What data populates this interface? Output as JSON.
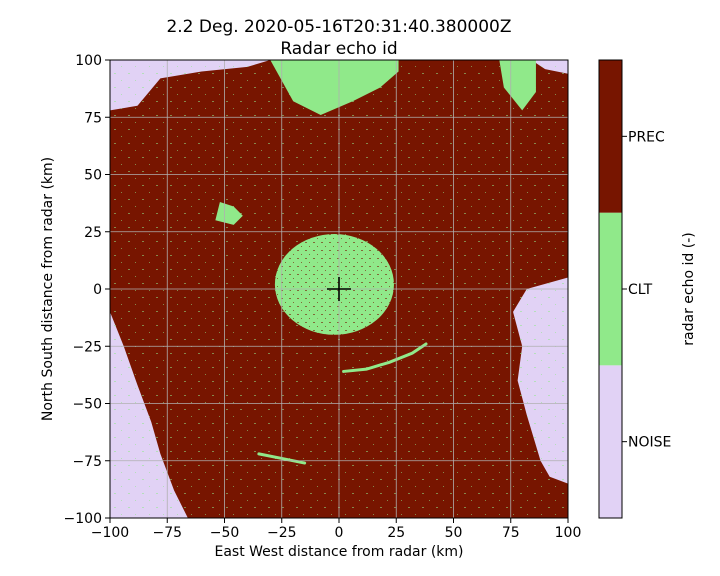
{
  "chart_data": {
    "type": "heatmap",
    "title": "2.2 Deg. 2020-05-16T20:31:40.380000Z",
    "subtitle": "Radar echo id",
    "xlabel": "East West distance from radar (km)",
    "ylabel": "North South distance from radar (km)",
    "xlim": [
      -100,
      100
    ],
    "ylim": [
      -100,
      100
    ],
    "x_ticks": [
      -100,
      -75,
      -50,
      -25,
      0,
      25,
      50,
      75,
      100
    ],
    "y_ticks": [
      -100,
      -75,
      -50,
      -25,
      0,
      25,
      50,
      75,
      100
    ],
    "x_tick_labels": [
      "−100",
      "−75",
      "−50",
      "−25",
      "0",
      "25",
      "50",
      "75",
      "100"
    ],
    "y_tick_labels": [
      "−100",
      "−75",
      "−50",
      "−25",
      "0",
      "25",
      "50",
      "75",
      "100"
    ],
    "grid": true,
    "radar_marker": {
      "x": 0,
      "y": 0,
      "symbol": "+"
    },
    "colorbar": {
      "label": "radar echo id (-)",
      "classes": [
        {
          "name": "NOISE",
          "color": "#e1d2f5"
        },
        {
          "name": "CLT",
          "color": "#90e98a"
        },
        {
          "name": "PREC",
          "color": "#771500"
        }
      ]
    },
    "regions": [
      {
        "class": "NOISE",
        "description": "top-left corner",
        "polygon": [
          [
            -100,
            100
          ],
          [
            -100,
            78
          ],
          [
            -88,
            80
          ],
          [
            -78,
            92
          ],
          [
            -60,
            95
          ],
          [
            -40,
            97
          ],
          [
            -30,
            100
          ]
        ]
      },
      {
        "class": "NOISE",
        "description": "left edge and bottom-left corner",
        "polygon": [
          [
            -100,
            -10
          ],
          [
            -94,
            -25
          ],
          [
            -88,
            -42
          ],
          [
            -82,
            -58
          ],
          [
            -78,
            -72
          ],
          [
            -72,
            -88
          ],
          [
            -66,
            -100
          ],
          [
            -100,
            -100
          ]
        ]
      },
      {
        "class": "NOISE",
        "description": "right edge",
        "polygon": [
          [
            100,
            5
          ],
          [
            82,
            0
          ],
          [
            76,
            -10
          ],
          [
            80,
            -25
          ],
          [
            78,
            -40
          ],
          [
            82,
            -55
          ],
          [
            85,
            -65
          ],
          [
            88,
            -75
          ],
          [
            92,
            -82
          ],
          [
            100,
            -85
          ]
        ]
      },
      {
        "class": "NOISE",
        "description": "top-right corner",
        "polygon": [
          [
            84,
            100
          ],
          [
            90,
            96
          ],
          [
            100,
            94
          ],
          [
            100,
            100
          ]
        ]
      },
      {
        "class": "CLT",
        "description": "central clutter around radar",
        "ellipse": {
          "cx": -2,
          "cy": 2,
          "rx": 26,
          "ry": 22
        }
      },
      {
        "class": "CLT",
        "description": "northern clutter band",
        "polygon": [
          [
            -30,
            100
          ],
          [
            -20,
            82
          ],
          [
            -8,
            76
          ],
          [
            6,
            82
          ],
          [
            18,
            88
          ],
          [
            26,
            95
          ],
          [
            26,
            100
          ]
        ]
      },
      {
        "class": "CLT",
        "description": "north-east clutter",
        "polygon": [
          [
            70,
            100
          ],
          [
            72,
            88
          ],
          [
            80,
            78
          ],
          [
            86,
            86
          ],
          [
            86,
            100
          ]
        ]
      },
      {
        "class": "CLT",
        "description": "north-west clutter patch",
        "polygon": [
          [
            -52,
            38
          ],
          [
            -46,
            36
          ],
          [
            -42,
            32
          ],
          [
            -46,
            28
          ],
          [
            -54,
            30
          ]
        ]
      }
    ],
    "arcs": [
      {
        "class": "CLT",
        "description": "arc south of radar",
        "points": [
          [
            2,
            -36
          ],
          [
            12,
            -35
          ],
          [
            22,
            -32
          ],
          [
            32,
            -28
          ],
          [
            38,
            -24
          ]
        ]
      },
      {
        "class": "CLT",
        "description": "arc south-west",
        "points": [
          [
            -35,
            -72
          ],
          [
            -25,
            -74
          ],
          [
            -15,
            -76
          ]
        ]
      }
    ]
  }
}
